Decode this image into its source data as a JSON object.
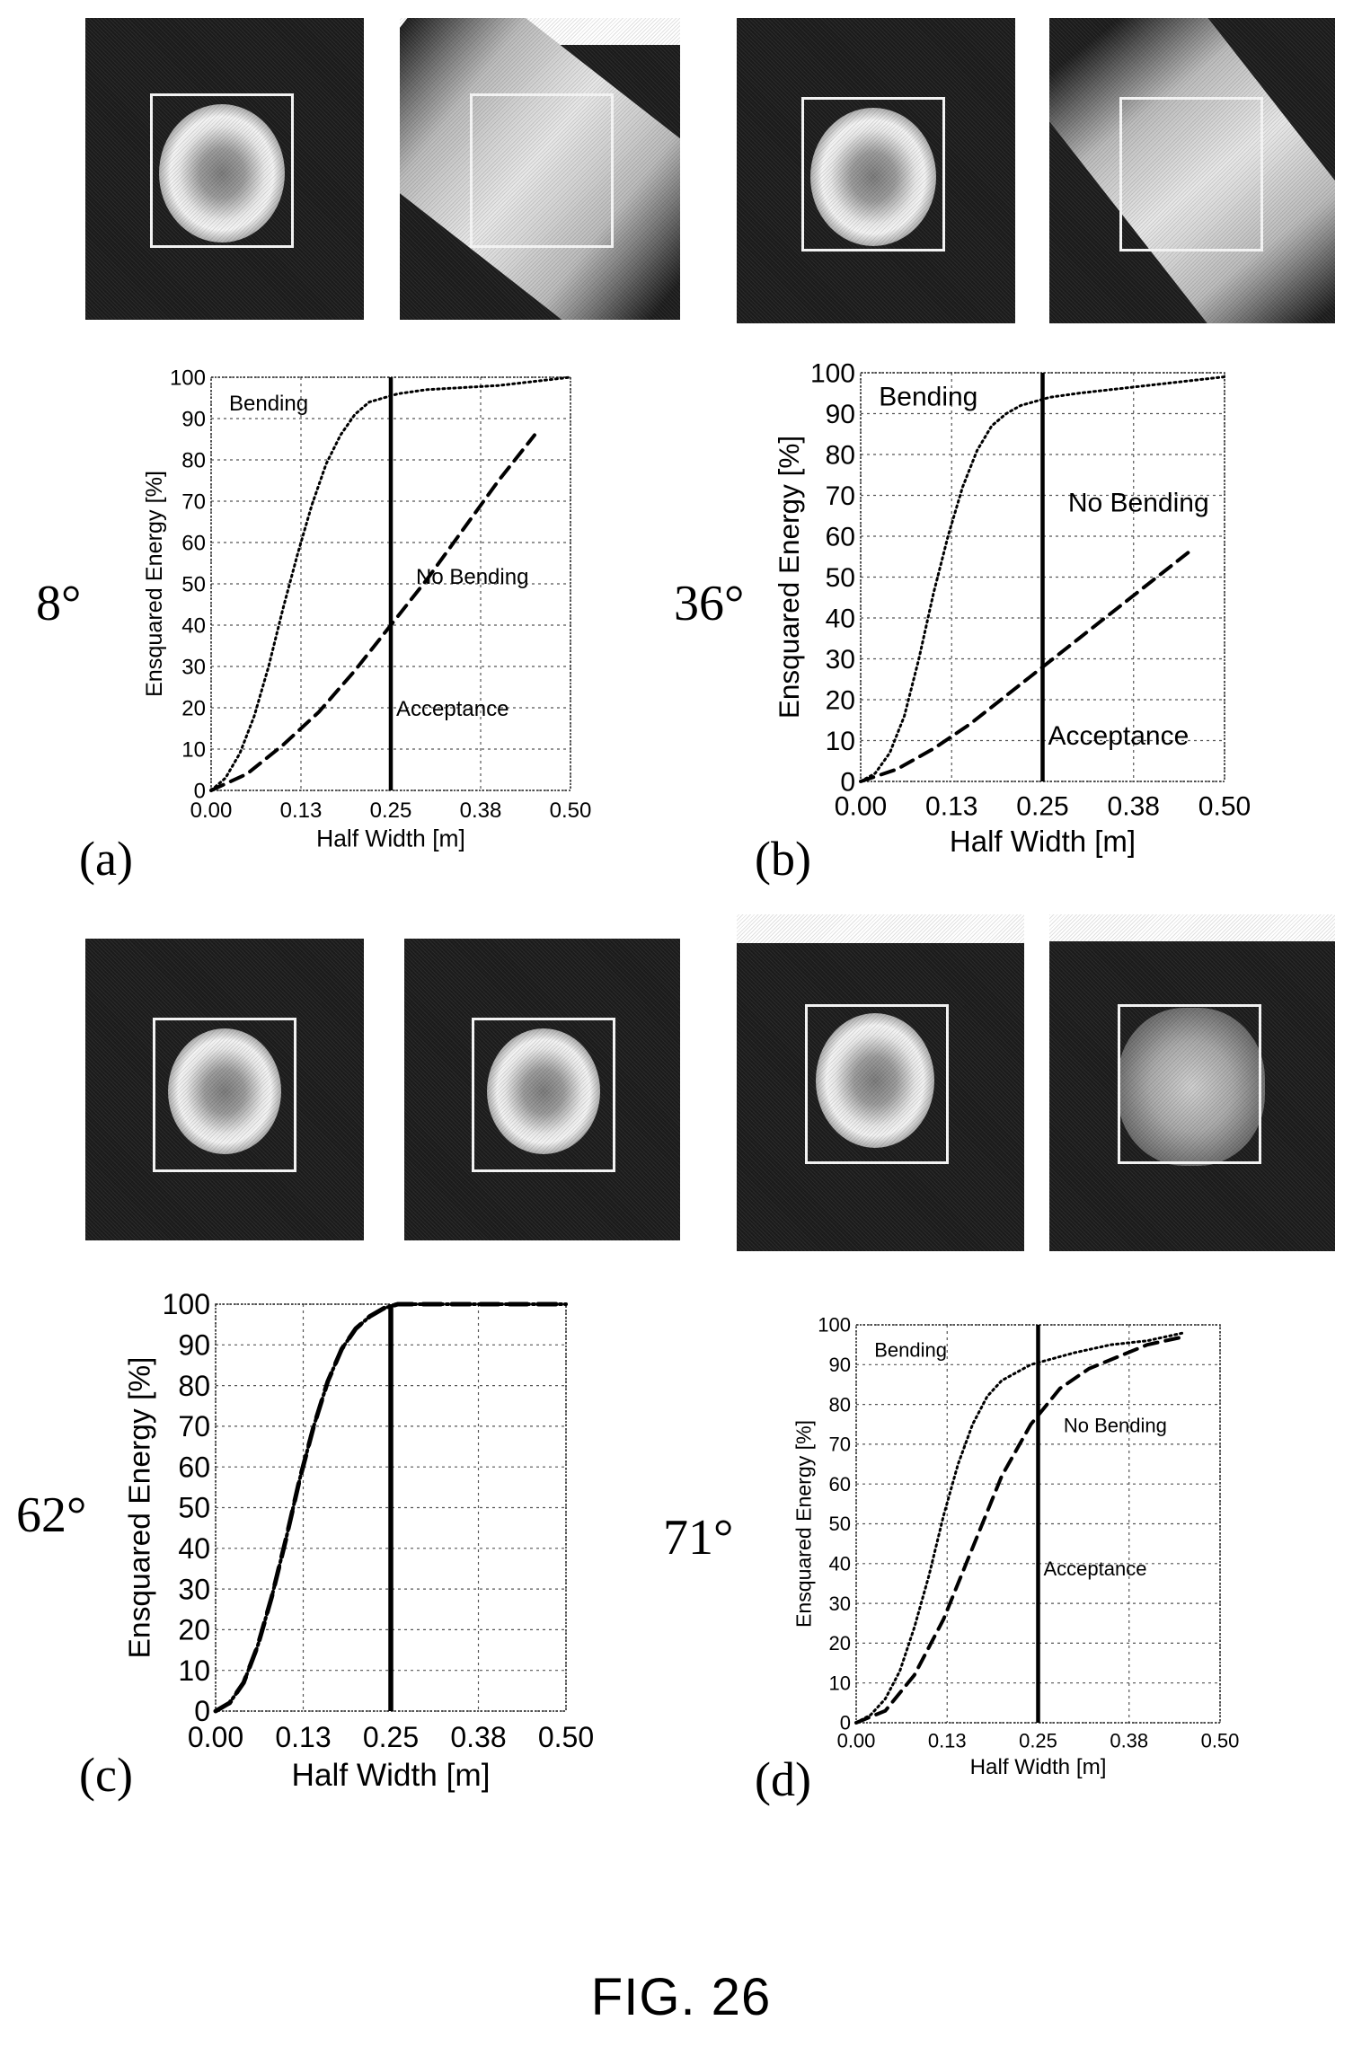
{
  "figure_label": "FIG. 26",
  "chart_data": [
    {
      "id": "a",
      "type": "line",
      "panel_label": "(a)",
      "angle_label": "8°",
      "xlabel": "Half Width [m]",
      "ylabel": "Ensquared Energy [%]",
      "xticks": [
        "0.00",
        "0.13",
        "0.25",
        "0.38",
        "0.50"
      ],
      "yticks": [
        "0",
        "10",
        "20",
        "30",
        "40",
        "50",
        "60",
        "70",
        "80",
        "90",
        "100"
      ],
      "xlim": [
        0,
        0.5
      ],
      "ylim": [
        0,
        100
      ],
      "grid": true,
      "acceptance_x": 0.25,
      "annotations": {
        "bending": "Bending",
        "no_bending": "No Bending",
        "acceptance": "Acceptance"
      },
      "series": [
        {
          "style": "dotted",
          "x": [
            0,
            0.02,
            0.04,
            0.06,
            0.08,
            0.1,
            0.12,
            0.14,
            0.16,
            0.18,
            0.2,
            0.22,
            0.24,
            0.26,
            0.3,
            0.35,
            0.4,
            0.45,
            0.5
          ],
          "y": [
            0,
            3,
            9,
            18,
            30,
            44,
            57,
            69,
            79,
            86,
            91,
            94,
            95,
            96,
            97,
            97.5,
            98,
            99,
            100
          ]
        },
        {
          "style": "dashed",
          "x": [
            0,
            0.05,
            0.1,
            0.15,
            0.2,
            0.25,
            0.3,
            0.35,
            0.4,
            0.45
          ],
          "y": [
            0,
            4,
            11,
            19,
            29,
            40,
            51,
            63,
            75,
            86
          ]
        }
      ]
    },
    {
      "id": "b",
      "type": "line",
      "panel_label": "(b)",
      "angle_label": "36°",
      "xlabel": "Half Width [m]",
      "ylabel": "Ensquared Energy [%]",
      "xticks": [
        "0.00",
        "0.13",
        "0.25",
        "0.38",
        "0.50"
      ],
      "yticks": [
        "0",
        "10",
        "20",
        "30",
        "40",
        "50",
        "60",
        "70",
        "80",
        "90",
        "100"
      ],
      "xlim": [
        0,
        0.5
      ],
      "ylim": [
        0,
        100
      ],
      "grid": true,
      "acceptance_x": 0.25,
      "annotations": {
        "bending": "Bending",
        "no_bending": "No Bending",
        "acceptance": "Acceptance"
      },
      "series": [
        {
          "style": "dotted",
          "x": [
            0,
            0.02,
            0.04,
            0.06,
            0.08,
            0.1,
            0.12,
            0.14,
            0.16,
            0.18,
            0.2,
            0.22,
            0.24,
            0.26,
            0.3,
            0.35,
            0.4,
            0.45,
            0.5
          ],
          "y": [
            0,
            2,
            7,
            16,
            30,
            46,
            60,
            72,
            81,
            87,
            90,
            92,
            93,
            94,
            95,
            96,
            97,
            98,
            99
          ]
        },
        {
          "style": "dashed",
          "x": [
            0,
            0.05,
            0.1,
            0.15,
            0.2,
            0.25,
            0.3,
            0.35,
            0.4,
            0.45
          ],
          "y": [
            0,
            3,
            8,
            14,
            21,
            28,
            35,
            42,
            49,
            56
          ]
        }
      ]
    },
    {
      "id": "c",
      "type": "line",
      "panel_label": "(c)",
      "angle_label": "62°",
      "xlabel": "Half Width [m]",
      "ylabel": "Ensquared Energy [%]",
      "xticks": [
        "0.00",
        "0.13",
        "0.25",
        "0.38",
        "0.50"
      ],
      "yticks": [
        "0",
        "10",
        "20",
        "30",
        "40",
        "50",
        "60",
        "70",
        "80",
        "90",
        "100"
      ],
      "xlim": [
        0,
        0.5
      ],
      "ylim": [
        0,
        100
      ],
      "grid": true,
      "acceptance_x": 0.25,
      "annotations": {
        "bending": "",
        "no_bending": "",
        "acceptance": ""
      },
      "series": [
        {
          "style": "dotted",
          "x": [
            0,
            0.02,
            0.04,
            0.06,
            0.08,
            0.1,
            0.12,
            0.14,
            0.16,
            0.18,
            0.2,
            0.22,
            0.24,
            0.26,
            0.3,
            0.4,
            0.5
          ],
          "y": [
            0,
            2,
            7,
            16,
            28,
            42,
            57,
            70,
            81,
            89,
            94,
            97,
            99,
            100,
            100,
            100,
            100
          ]
        },
        {
          "style": "dashed",
          "x": [
            0,
            0.02,
            0.04,
            0.06,
            0.08,
            0.1,
            0.12,
            0.14,
            0.16,
            0.18,
            0.2,
            0.22,
            0.24,
            0.26,
            0.3,
            0.4,
            0.5
          ],
          "y": [
            0,
            2,
            7,
            16,
            28,
            42,
            57,
            70,
            81,
            89,
            94,
            97,
            99,
            100,
            100,
            100,
            100
          ]
        }
      ]
    },
    {
      "id": "d",
      "type": "line",
      "panel_label": "(d)",
      "angle_label": "71°",
      "xlabel": "Half Width [m]",
      "ylabel": "Ensquared Energy [%]",
      "xticks": [
        "0.00",
        "0.13",
        "0.25",
        "0.38",
        "0.50"
      ],
      "yticks": [
        "0",
        "10",
        "20",
        "30",
        "40",
        "50",
        "60",
        "70",
        "80",
        "90",
        "100"
      ],
      "xlim": [
        0,
        0.5
      ],
      "ylim": [
        0,
        100
      ],
      "grid": true,
      "acceptance_x": 0.25,
      "annotations": {
        "bending": "Bending",
        "no_bending": "No Bending",
        "acceptance": "Acceptance"
      },
      "series": [
        {
          "style": "dotted",
          "x": [
            0,
            0.02,
            0.04,
            0.06,
            0.08,
            0.1,
            0.12,
            0.14,
            0.16,
            0.18,
            0.2,
            0.22,
            0.24,
            0.26,
            0.3,
            0.35,
            0.4,
            0.45
          ],
          "y": [
            0,
            2,
            6,
            13,
            24,
            37,
            52,
            65,
            75,
            82,
            86,
            88,
            90,
            91,
            93,
            95,
            96,
            98
          ]
        },
        {
          "style": "dashed",
          "x": [
            0,
            0.04,
            0.08,
            0.12,
            0.16,
            0.2,
            0.24,
            0.28,
            0.32,
            0.36,
            0.4,
            0.45
          ],
          "y": [
            0,
            3,
            12,
            26,
            44,
            62,
            75,
            84,
            89,
            92,
            95,
            97
          ]
        }
      ]
    }
  ]
}
